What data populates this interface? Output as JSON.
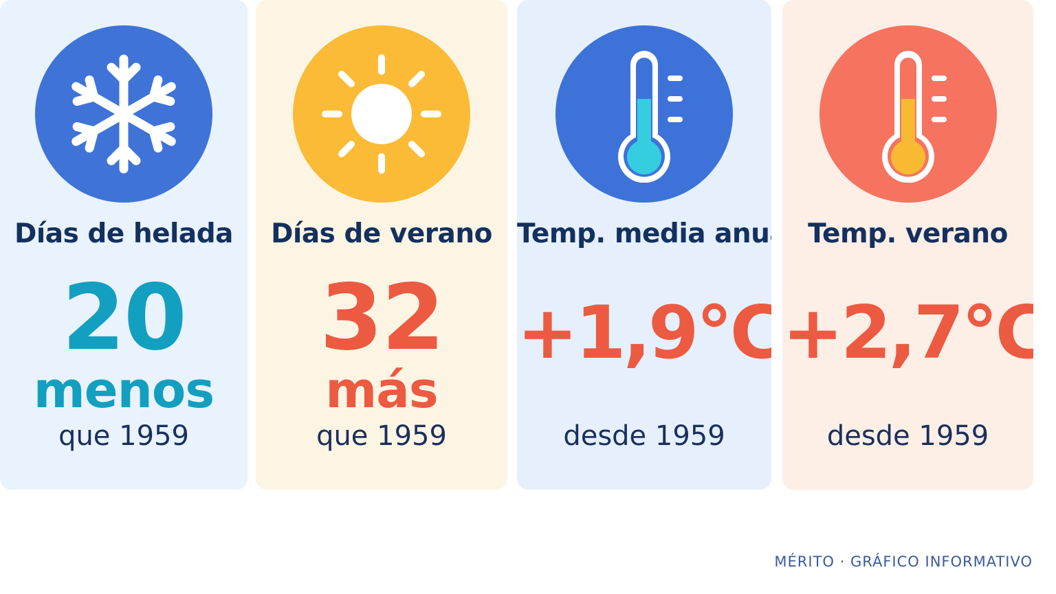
{
  "colors": {
    "frost_card_bg": "#e9f3fd",
    "summer_card_bg": "#fdf5e4",
    "annual_card_bg": "#e5f0fc",
    "summer_temp_card_bg": "#fdeee6",
    "frost_icon_bg": "#3f73d8",
    "sun_icon_bg": "#fbbb36",
    "annual_icon_bg": "#3d72d9",
    "summer_temp_icon_bg": "#f5735f",
    "teal_value": "#139fbf",
    "red_value": "#ec5a42",
    "title_text": "#14305e"
  },
  "cards": [
    {
      "icon": "snowflake-icon",
      "title": "Días de helada",
      "value": "20",
      "qualifier": "menos",
      "reference": "que 1959"
    },
    {
      "icon": "sun-icon",
      "title": "Días de verano",
      "value": "32",
      "qualifier": "más",
      "reference": "que 1959"
    },
    {
      "icon": "thermometer-cold-icon",
      "title": "Temp. media anual",
      "value": "+1,9°C",
      "reference": "desde 1959"
    },
    {
      "icon": "thermometer-hot-icon",
      "title": "Temp. verano",
      "value": "+2,7°C",
      "reference": "desde 1959"
    }
  ],
  "footer": "MÉRITO · GRÁFICO INFORMATIVO"
}
